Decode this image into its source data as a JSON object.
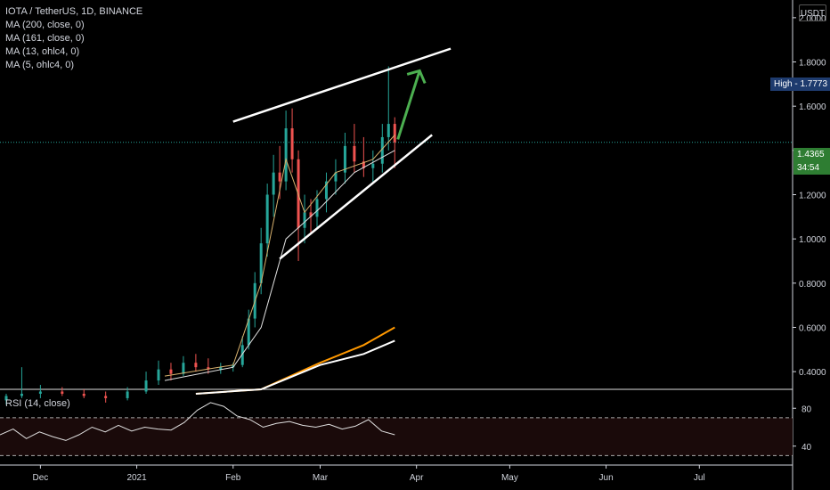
{
  "header": {
    "symbol": "IOTA / TetherUS, 1D, BINANCE",
    "indicators": [
      "MA (200, close, 0)",
      "MA (161, close, 0)",
      "MA (13, ohlc4, 0)",
      "MA (5, ohlc4, 0)"
    ],
    "currency_button": "USDT"
  },
  "price_tags": {
    "high_label": "High",
    "high_value": "1.7773",
    "last_value": "1.4365",
    "countdown": "34:54",
    "colors": {
      "high_bg": "#1e3b6e",
      "last_bg": "#2e7d32"
    }
  },
  "rsi": {
    "label": "RSI (14, close)",
    "ticks": [
      "80",
      "40"
    ],
    "upper": 70,
    "lower": 30
  },
  "chart_data": {
    "type": "candlestick",
    "y_ticks": [
      "2.0000",
      "1.8000",
      "1.6000",
      "1.4000",
      "1.2000",
      "1.0000",
      "0.8000",
      "0.6000",
      "0.4000"
    ],
    "x_ticks": [
      "Dec",
      "2021",
      "Feb",
      "Mar",
      "Apr",
      "May",
      "Jun",
      "Jul"
    ],
    "ylim": [
      0.32,
      2.08
    ],
    "candles": [
      [
        "2020-11-20",
        0.27,
        0.3,
        0.25,
        0.29
      ],
      [
        "2020-11-25",
        0.29,
        0.42,
        0.28,
        0.3
      ],
      [
        "2020-12-01",
        0.3,
        0.34,
        0.28,
        0.31
      ],
      [
        "2020-12-08",
        0.31,
        0.33,
        0.29,
        0.3
      ],
      [
        "2020-12-15",
        0.3,
        0.32,
        0.28,
        0.29
      ],
      [
        "2020-12-22",
        0.29,
        0.31,
        0.26,
        0.28
      ],
      [
        "2020-12-29",
        0.28,
        0.33,
        0.27,
        0.31
      ],
      [
        "2021-01-04",
        0.31,
        0.4,
        0.3,
        0.36
      ],
      [
        "2021-01-08",
        0.36,
        0.45,
        0.34,
        0.41
      ],
      [
        "2021-01-12",
        0.41,
        0.44,
        0.36,
        0.39
      ],
      [
        "2021-01-16",
        0.39,
        0.47,
        0.38,
        0.44
      ],
      [
        "2021-01-20",
        0.44,
        0.48,
        0.4,
        0.42
      ],
      [
        "2021-01-24",
        0.42,
        0.46,
        0.39,
        0.41
      ],
      [
        "2021-01-28",
        0.41,
        0.44,
        0.39,
        0.42
      ],
      [
        "2021-02-01",
        0.42,
        0.44,
        0.4,
        0.43
      ],
      [
        "2021-02-04",
        0.43,
        0.56,
        0.42,
        0.52
      ],
      [
        "2021-02-06",
        0.52,
        0.68,
        0.5,
        0.64
      ],
      [
        "2021-02-08",
        0.64,
        0.85,
        0.6,
        0.8
      ],
      [
        "2021-02-10",
        0.8,
        1.05,
        0.75,
        0.98
      ],
      [
        "2021-02-12",
        0.98,
        1.25,
        0.92,
        1.2
      ],
      [
        "2021-02-14",
        1.2,
        1.38,
        1.1,
        1.3
      ],
      [
        "2021-02-16",
        1.3,
        1.42,
        1.18,
        1.26
      ],
      [
        "2021-02-18",
        1.26,
        1.58,
        1.22,
        1.5
      ],
      [
        "2021-02-20",
        1.5,
        1.59,
        1.3,
        1.36
      ],
      [
        "2021-02-22",
        1.36,
        1.4,
        0.9,
        1.05
      ],
      [
        "2021-02-24",
        1.05,
        1.2,
        0.98,
        1.12
      ],
      [
        "2021-02-26",
        1.12,
        1.18,
        1.02,
        1.1
      ],
      [
        "2021-02-28",
        1.1,
        1.22,
        1.05,
        1.18
      ],
      [
        "2021-03-03",
        1.18,
        1.3,
        1.12,
        1.26
      ],
      [
        "2021-03-06",
        1.26,
        1.36,
        1.2,
        1.3
      ],
      [
        "2021-03-09",
        1.3,
        1.48,
        1.25,
        1.42
      ],
      [
        "2021-03-12",
        1.42,
        1.52,
        1.3,
        1.35
      ],
      [
        "2021-03-15",
        1.35,
        1.46,
        1.28,
        1.32
      ],
      [
        "2021-03-18",
        1.32,
        1.4,
        1.25,
        1.34
      ],
      [
        "2021-03-21",
        1.34,
        1.52,
        1.3,
        1.46
      ],
      [
        "2021-03-23",
        1.46,
        1.78,
        1.4,
        1.52
      ],
      [
        "2021-03-25",
        1.52,
        1.55,
        1.32,
        1.4365
      ]
    ],
    "ma_200": [
      [
        "2021-01-20",
        0.3
      ],
      [
        "2021-02-10",
        0.32
      ],
      [
        "2021-03-01",
        0.44
      ],
      [
        "2021-03-15",
        0.52
      ],
      [
        "2021-03-25",
        0.6
      ]
    ],
    "ma_161": [
      [
        "2021-01-20",
        0.3
      ],
      [
        "2021-02-10",
        0.32
      ],
      [
        "2021-03-01",
        0.43
      ],
      [
        "2021-03-15",
        0.48
      ],
      [
        "2021-03-25",
        0.54
      ]
    ],
    "ma_13": [
      [
        "2021-01-10",
        0.36
      ],
      [
        "2021-02-01",
        0.42
      ],
      [
        "2021-02-10",
        0.6
      ],
      [
        "2021-02-18",
        1.0
      ],
      [
        "2021-03-01",
        1.14
      ],
      [
        "2021-03-12",
        1.3
      ],
      [
        "2021-03-25",
        1.4
      ]
    ],
    "ma_5": [
      [
        "2021-01-10",
        0.38
      ],
      [
        "2021-02-01",
        0.43
      ],
      [
        "2021-02-10",
        0.8
      ],
      [
        "2021-02-18",
        1.36
      ],
      [
        "2021-02-24",
        1.12
      ],
      [
        "2021-03-06",
        1.3
      ],
      [
        "2021-03-18",
        1.36
      ],
      [
        "2021-03-25",
        1.47
      ]
    ],
    "rsi_values": [
      52,
      58,
      48,
      55,
      50,
      46,
      52,
      60,
      55,
      62,
      56,
      60,
      58,
      57,
      65,
      78,
      86,
      82,
      72,
      68,
      60,
      64,
      66,
      62,
      60,
      63,
      58,
      61,
      68,
      56,
      52
    ],
    "annotations": {
      "upper_trendline": [
        [
          "2021-02-01",
          1.53
        ],
        [
          "2021-04-12",
          1.86
        ]
      ],
      "lower_trendline": [
        [
          "2021-02-16",
          0.91
        ],
        [
          "2021-04-06",
          1.47
        ]
      ],
      "arrow": [
        [
          "2021-03-26",
          1.45
        ],
        [
          "2021-04-02",
          1.76
        ]
      ]
    }
  }
}
